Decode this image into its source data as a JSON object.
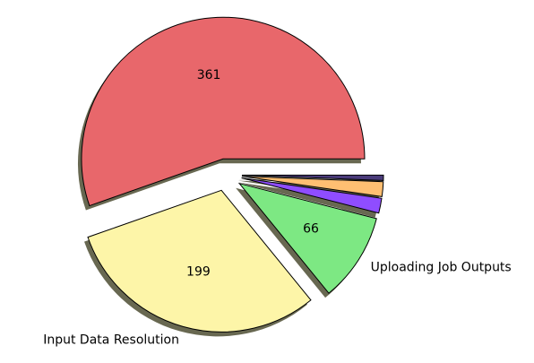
{
  "chart_data": {
    "type": "pie",
    "categories": [
      null,
      "Input Data Resolution",
      "Uploading Job Outputs",
      null,
      null,
      null
    ],
    "values": [
      361,
      199,
      66,
      11,
      11,
      4
    ],
    "value_labels": [
      "361",
      "199",
      "66",
      null,
      null,
      null
    ],
    "colors": [
      "#e8676b",
      "#fdf5a8",
      "#7de883",
      "#8f4dff",
      "#ffbf72",
      "#4a3b7a"
    ]
  }
}
